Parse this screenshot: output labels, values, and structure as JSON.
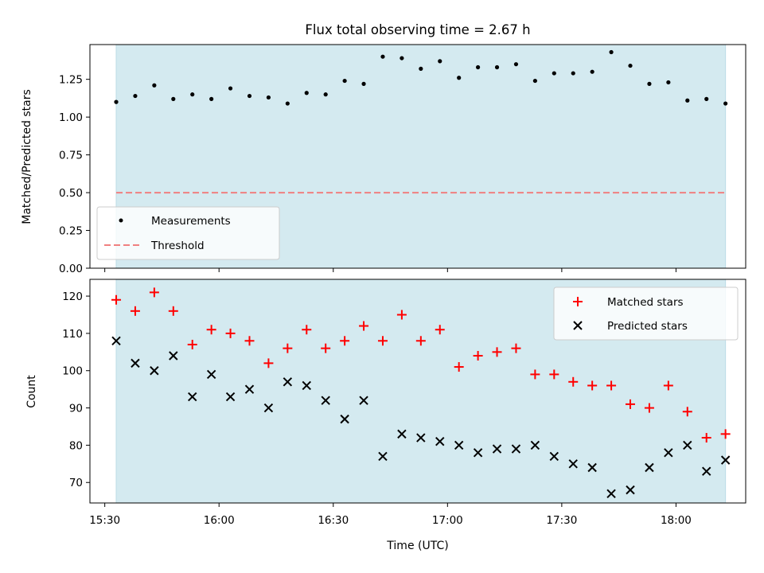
{
  "chart_data": [
    {
      "type": "scatter",
      "title": "Flux total observing time = 2.67 h",
      "xlabel": "",
      "ylabel": "Matched/Predicted stars",
      "ylim": [
        0.0,
        1.48
      ],
      "yticks": [
        "0.00",
        "0.25",
        "0.50",
        "0.75",
        "1.00",
        "1.25"
      ],
      "yticks_values": [
        0.0,
        0.25,
        0.5,
        0.75,
        1.0,
        1.25
      ],
      "x": [
        "15:33",
        "15:38",
        "15:43",
        "15:48",
        "15:53",
        "15:58",
        "16:03",
        "16:08",
        "16:13",
        "16:18",
        "16:23",
        "16:28",
        "16:33",
        "16:38",
        "16:43",
        "16:48",
        "16:53",
        "16:58",
        "17:03",
        "17:08",
        "17:13",
        "17:18",
        "17:23",
        "17:28",
        "17:33",
        "17:38",
        "17:43",
        "17:48",
        "17:53",
        "17:58",
        "18:03",
        "18:08",
        "18:13"
      ],
      "series": [
        {
          "name": "Measurements",
          "color": "#000000",
          "marker": "dot",
          "values": [
            1.1,
            1.14,
            1.21,
            1.12,
            1.15,
            1.12,
            1.19,
            1.14,
            1.13,
            1.09,
            1.16,
            1.15,
            1.24,
            1.22,
            1.4,
            1.39,
            1.32,
            1.37,
            1.26,
            1.33,
            1.33,
            1.35,
            1.24,
            1.29,
            1.29,
            1.3,
            1.43,
            1.34,
            1.22,
            1.23,
            1.11,
            1.12,
            1.09
          ]
        },
        {
          "name": "Threshold",
          "color": "#f08080",
          "style": "dashed-line",
          "value": 0.5
        }
      ],
      "shaded_span": {
        "from": "15:33",
        "to": "18:13",
        "color": "#d4eaf0"
      },
      "legend": "lower-left",
      "grid": false
    },
    {
      "type": "scatter",
      "xlabel": "Time (UTC)",
      "ylabel": "Count",
      "ylim": [
        64.5,
        124.5
      ],
      "yticks": [
        "70",
        "80",
        "90",
        "100",
        "110",
        "120"
      ],
      "yticks_values": [
        70,
        80,
        90,
        100,
        110,
        120
      ],
      "xticks": [
        "15:30",
        "16:00",
        "16:30",
        "17:00",
        "17:30",
        "18:00"
      ],
      "x": [
        "15:33",
        "15:38",
        "15:43",
        "15:48",
        "15:53",
        "15:58",
        "16:03",
        "16:08",
        "16:13",
        "16:18",
        "16:23",
        "16:28",
        "16:33",
        "16:38",
        "16:43",
        "16:48",
        "16:53",
        "16:58",
        "17:03",
        "17:08",
        "17:13",
        "17:18",
        "17:23",
        "17:28",
        "17:33",
        "17:38",
        "17:43",
        "17:48",
        "17:53",
        "17:58",
        "18:03",
        "18:08",
        "18:13"
      ],
      "series": [
        {
          "name": "Matched stars",
          "color": "#ff0000",
          "marker": "plus",
          "values": [
            119,
            116,
            121,
            116,
            107,
            111,
            110,
            108,
            102,
            106,
            111,
            106,
            108,
            112,
            108,
            115,
            108,
            111,
            101,
            104,
            105,
            106,
            99,
            99,
            97,
            96,
            96,
            91,
            90,
            96,
            89,
            82,
            83
          ]
        },
        {
          "name": "Predicted stars",
          "color": "#000000",
          "marker": "x",
          "values": [
            108,
            102,
            100,
            104,
            93,
            99,
            93,
            95,
            90,
            97,
            96,
            92,
            87,
            92,
            77,
            83,
            82,
            81,
            80,
            78,
            79,
            79,
            80,
            77,
            75,
            74,
            67,
            68,
            74,
            78,
            80,
            73,
            76
          ]
        }
      ],
      "shaded_span": {
        "from": "15:33",
        "to": "18:13",
        "color": "#d4eaf0"
      },
      "legend": "upper-right",
      "grid": false
    }
  ]
}
